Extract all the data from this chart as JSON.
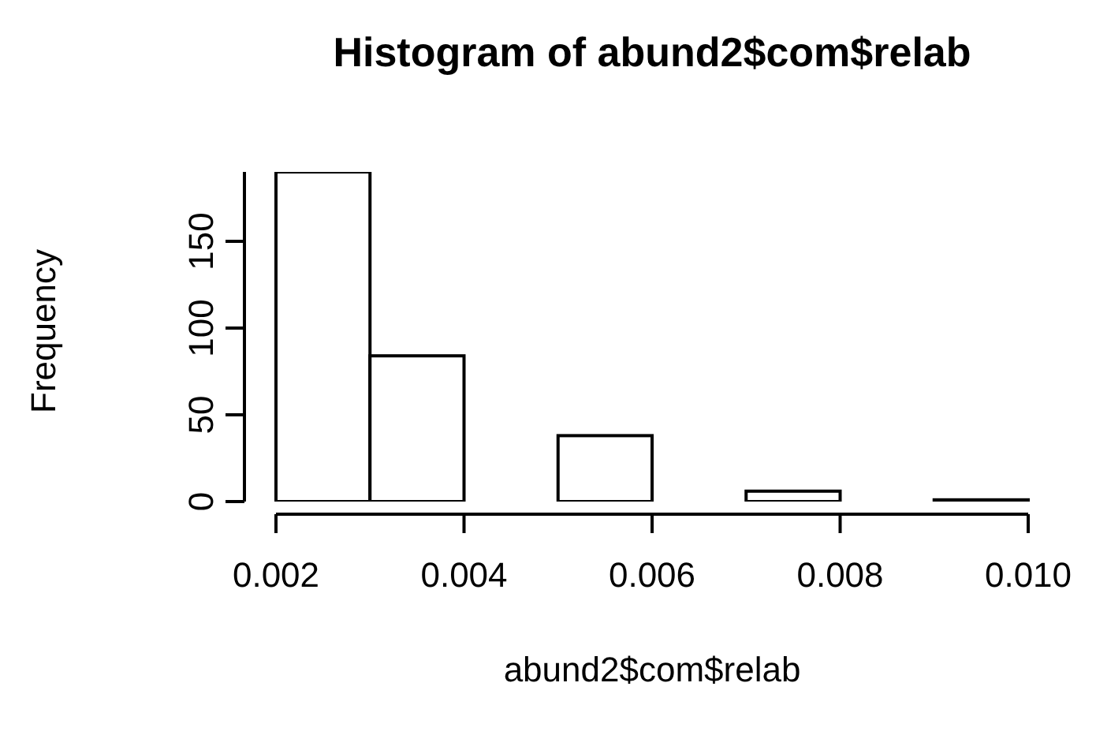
{
  "chart_data": {
    "type": "histogram",
    "title": "Histogram of abund2$com$relab",
    "xlabel": "abund2$com$relab",
    "ylabel": "Frequency",
    "bins": [
      0.002,
      0.003,
      0.004,
      0.005,
      0.006,
      0.007,
      0.008,
      0.009,
      0.01
    ],
    "values": [
      190,
      84,
      0,
      38,
      0,
      6,
      0,
      1
    ],
    "color": "#ffffff",
    "xlim": [
      0.002,
      0.01
    ],
    "xticks": [
      {
        "value": 0.002,
        "label": "0.002"
      },
      {
        "value": 0.004,
        "label": "0.004"
      },
      {
        "value": 0.006,
        "label": "0.006"
      },
      {
        "value": 0.008,
        "label": "0.008"
      },
      {
        "value": 0.01,
        "label": "0.010"
      }
    ],
    "ylim": [
      0,
      190
    ],
    "yticks": [
      0,
      50,
      100,
      150
    ]
  }
}
